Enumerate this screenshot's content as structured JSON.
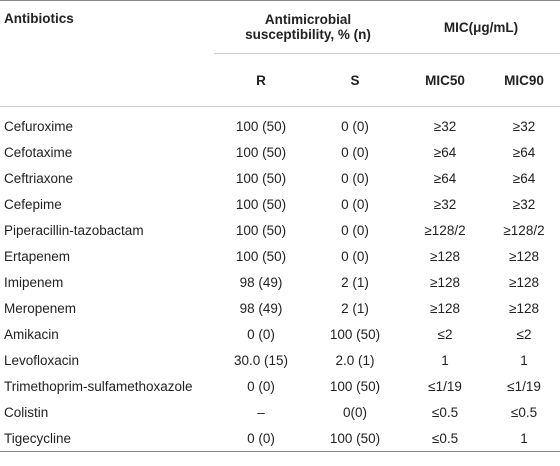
{
  "headers": {
    "antibiotics": "Antibiotics",
    "susceptibility": "Antimicrobial susceptibility, % (n)",
    "mic": "MIC(μg/mL)",
    "r": "R",
    "s": "S",
    "mic50": "MIC50",
    "mic90": "MIC90"
  },
  "rows": [
    {
      "name": "Cefuroxime",
      "r": "100 (50)",
      "s": "0 (0)",
      "mic50": "≥32",
      "mic90": "≥32"
    },
    {
      "name": "Cefotaxime",
      "r": "100 (50)",
      "s": "0 (0)",
      "mic50": "≥64",
      "mic90": "≥64"
    },
    {
      "name": "Ceftriaxone",
      "r": "100 (50)",
      "s": "0 (0)",
      "mic50": "≥64",
      "mic90": "≥64"
    },
    {
      "name": "Cefepime",
      "r": "100 (50)",
      "s": "0 (0)",
      "mic50": "≥32",
      "mic90": "≥32"
    },
    {
      "name": "Piperacillin-tazobactam",
      "r": "100 (50)",
      "s": "0 (0)",
      "mic50": "≥128/2",
      "mic90": "≥128/2"
    },
    {
      "name": "Ertapenem",
      "r": "100 (50)",
      "s": "0 (0)",
      "mic50": "≥128",
      "mic90": "≥128"
    },
    {
      "name": "Imipenem",
      "r": "98 (49)",
      "s": "2 (1)",
      "mic50": "≥128",
      "mic90": "≥128"
    },
    {
      "name": "Meropenem",
      "r": "98 (49)",
      "s": "2 (1)",
      "mic50": "≥128",
      "mic90": "≥128"
    },
    {
      "name": "Amikacin",
      "r": "0 (0)",
      "s": "100 (50)",
      "mic50": "≤2",
      "mic90": "≤2"
    },
    {
      "name": "Levofloxacin",
      "r": "30.0 (15)",
      "s": "2.0 (1)",
      "mic50": "1",
      "mic90": "1"
    },
    {
      "name": "Trimethoprim-sulfamethoxazole",
      "r": "0 (0)",
      "s": "100 (50)",
      "mic50": "≤1/19",
      "mic90": "≤1/19"
    },
    {
      "name": "Colistin",
      "r": "–",
      "s": "0(0)",
      "mic50": "≤0.5",
      "mic90": "≤0.5"
    },
    {
      "name": "Tigecycline",
      "r": "0 (0)",
      "s": "100 (50)",
      "mic50": "≤0.5",
      "mic90": "1"
    }
  ]
}
